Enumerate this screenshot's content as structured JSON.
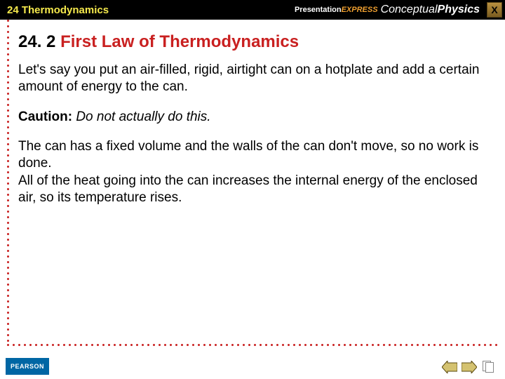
{
  "header": {
    "chapter": "24 Thermodynamics",
    "brand_express_pre": "Presentation",
    "brand_express_post": "EXPRESS",
    "brand_concept": "Conceptual",
    "brand_physics": "Physics",
    "close_label": "X"
  },
  "section": {
    "number": "24. 2",
    "title": "First Law of Thermodynamics"
  },
  "body": {
    "p1": "Let's say you put an air-filled, rigid, airtight can on a hotplate and add a certain amount of energy to the can.",
    "caution_label": "Caution:",
    "caution_text": " Do not actually do this.",
    "p3a": "The can has a fixed volume and the walls of the can don't move, so no work is done.",
    "p3b": "All of the heat going into the can increases the internal energy of the enclosed air, so its temperature rises."
  },
  "footer": {
    "pearson": "PEARSON"
  },
  "colors": {
    "accent_red": "#c92020",
    "header_bg": "#000000",
    "chapter_yellow": "#f5e94c",
    "pearson_blue": "#0066a4",
    "arrow_fill": "#d4c270",
    "arrow_stroke": "#5a4a10"
  }
}
